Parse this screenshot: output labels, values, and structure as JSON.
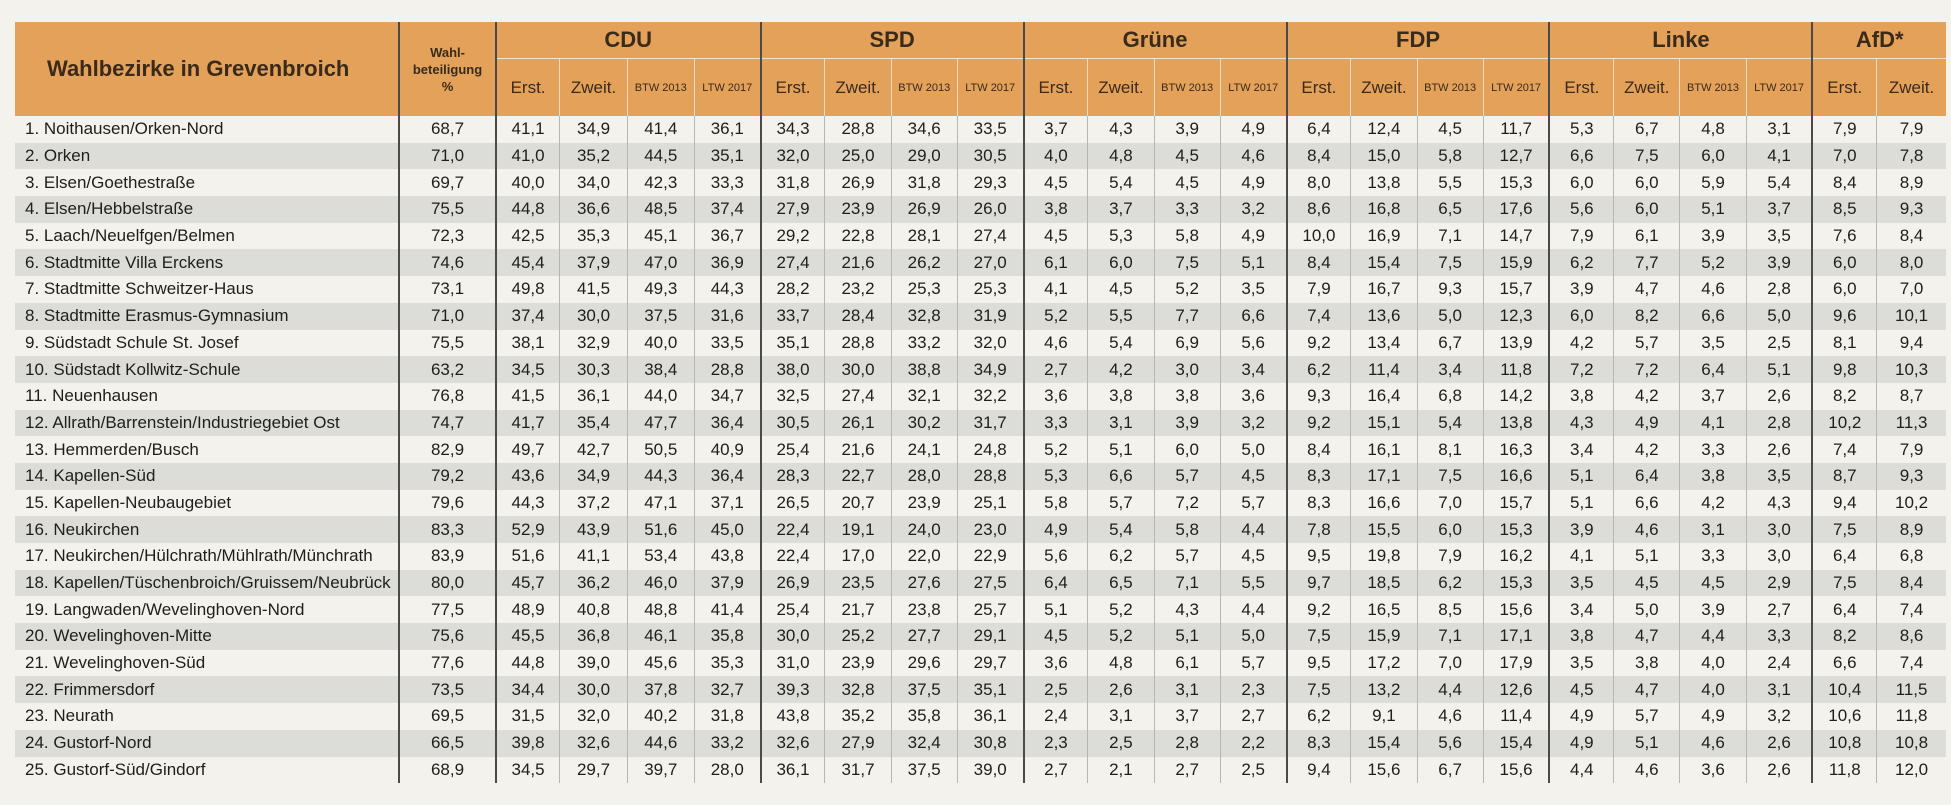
{
  "header": {
    "title": "Wahlbezirke in Grevenbroich",
    "turnout_label": "Wahl-\nbeteiligung\n%",
    "parties": [
      "CDU",
      "SPD",
      "Grüne",
      "FDP",
      "Linke",
      "AfD*"
    ],
    "sub4": [
      "Erst.",
      "Zweit.",
      "BTW 2013",
      "LTW 2017"
    ],
    "sub2": [
      "Erst.",
      "Zweit."
    ]
  },
  "rows": [
    {
      "name": "1. Noithausen/Orken-Nord",
      "turnout": "68,7",
      "v": [
        "41,1",
        "34,9",
        "41,4",
        "36,1",
        "34,3",
        "28,8",
        "34,6",
        "33,5",
        "3,7",
        "4,3",
        "3,9",
        "4,9",
        "6,4",
        "12,4",
        "4,5",
        "11,7",
        "5,3",
        "6,7",
        "4,8",
        "3,1",
        "7,9",
        "7,9"
      ]
    },
    {
      "name": "2. Orken",
      "turnout": "71,0",
      "v": [
        "41,0",
        "35,2",
        "44,5",
        "35,1",
        "32,0",
        "25,0",
        "29,0",
        "30,5",
        "4,0",
        "4,8",
        "4,5",
        "4,6",
        "8,4",
        "15,0",
        "5,8",
        "12,7",
        "6,6",
        "7,5",
        "6,0",
        "4,1",
        "7,0",
        "7,8"
      ]
    },
    {
      "name": "3. Elsen/Goethestraße",
      "turnout": "69,7",
      "v": [
        "40,0",
        "34,0",
        "42,3",
        "33,3",
        "31,8",
        "26,9",
        "31,8",
        "29,3",
        "4,5",
        "5,4",
        "4,5",
        "4,9",
        "8,0",
        "13,8",
        "5,5",
        "15,3",
        "6,0",
        "6,0",
        "5,9",
        "5,4",
        "8,4",
        "8,9"
      ]
    },
    {
      "name": "4. Elsen/Hebbelstraße",
      "turnout": "75,5",
      "v": [
        "44,8",
        "36,6",
        "48,5",
        "37,4",
        "27,9",
        "23,9",
        "26,9",
        "26,0",
        "3,8",
        "3,7",
        "3,3",
        "3,2",
        "8,6",
        "16,8",
        "6,5",
        "17,6",
        "5,6",
        "6,0",
        "5,1",
        "3,7",
        "8,5",
        "9,3"
      ]
    },
    {
      "name": "5. Laach/Neuelfgen/Belmen",
      "turnout": "72,3",
      "v": [
        "42,5",
        "35,3",
        "45,1",
        "36,7",
        "29,2",
        "22,8",
        "28,1",
        "27,4",
        "4,5",
        "5,3",
        "5,8",
        "4,9",
        "10,0",
        "16,9",
        "7,1",
        "14,7",
        "7,9",
        "6,1",
        "3,9",
        "3,5",
        "7,6",
        "8,4"
      ]
    },
    {
      "name": "6. Stadtmitte Villa Erckens",
      "turnout": "74,6",
      "v": [
        "45,4",
        "37,9",
        "47,0",
        "36,9",
        "27,4",
        "21,6",
        "26,2",
        "27,0",
        "6,1",
        "6,0",
        "7,5",
        "5,1",
        "8,4",
        "15,4",
        "7,5",
        "15,9",
        "6,2",
        "7,7",
        "5,2",
        "3,9",
        "6,0",
        "8,0"
      ]
    },
    {
      "name": "7. Stadtmitte Schweitzer-Haus",
      "turnout": "73,1",
      "v": [
        "49,8",
        "41,5",
        "49,3",
        "44,3",
        "28,2",
        "23,2",
        "25,3",
        "25,3",
        "4,1",
        "4,5",
        "5,2",
        "3,5",
        "7,9",
        "16,7",
        "9,3",
        "15,7",
        "3,9",
        "4,7",
        "4,6",
        "2,8",
        "6,0",
        "7,0"
      ]
    },
    {
      "name": "8. Stadtmitte Erasmus-Gymnasium",
      "turnout": "71,0",
      "v": [
        "37,4",
        "30,0",
        "37,5",
        "31,6",
        "33,7",
        "28,4",
        "32,8",
        "31,9",
        "5,2",
        "5,5",
        "7,7",
        "6,6",
        "7,4",
        "13,6",
        "5,0",
        "12,3",
        "6,0",
        "8,2",
        "6,6",
        "5,0",
        "9,6",
        "10,1"
      ]
    },
    {
      "name": "9. Südstadt Schule St. Josef",
      "turnout": "75,5",
      "v": [
        "38,1",
        "32,9",
        "40,0",
        "33,5",
        "35,1",
        "28,8",
        "33,2",
        "32,0",
        "4,6",
        "5,4",
        "6,9",
        "5,6",
        "9,2",
        "13,4",
        "6,7",
        "13,9",
        "4,2",
        "5,7",
        "3,5",
        "2,5",
        "8,1",
        "9,4"
      ]
    },
    {
      "name": "10. Südstadt Kollwitz-Schule",
      "turnout": "63,2",
      "v": [
        "34,5",
        "30,3",
        "38,4",
        "28,8",
        "38,0",
        "30,0",
        "38,8",
        "34,9",
        "2,7",
        "4,2",
        "3,0",
        "3,4",
        "6,2",
        "11,4",
        "3,4",
        "11,8",
        "7,2",
        "7,2",
        "6,4",
        "5,1",
        "9,8",
        "10,3"
      ]
    },
    {
      "name": "11. Neuenhausen",
      "turnout": "76,8",
      "v": [
        "41,5",
        "36,1",
        "44,0",
        "34,7",
        "32,5",
        "27,4",
        "32,1",
        "32,2",
        "3,6",
        "3,8",
        "3,8",
        "3,6",
        "9,3",
        "16,4",
        "6,8",
        "14,2",
        "3,8",
        "4,2",
        "3,7",
        "2,6",
        "8,2",
        "8,7"
      ]
    },
    {
      "name": "12. Allrath/Barrenstein/Industriegebiet Ost",
      "turnout": "74,7",
      "v": [
        "41,7",
        "35,4",
        "47,7",
        "36,4",
        "30,5",
        "26,1",
        "30,2",
        "31,7",
        "3,3",
        "3,1",
        "3,9",
        "3,2",
        "9,2",
        "15,1",
        "5,4",
        "13,8",
        "4,3",
        "4,9",
        "4,1",
        "2,8",
        "10,2",
        "11,3"
      ]
    },
    {
      "name": "13. Hemmerden/Busch",
      "turnout": "82,9",
      "v": [
        "49,7",
        "42,7",
        "50,5",
        "40,9",
        "25,4",
        "21,6",
        "24,1",
        "24,8",
        "5,2",
        "5,1",
        "6,0",
        "5,0",
        "8,4",
        "16,1",
        "8,1",
        "16,3",
        "3,4",
        "4,2",
        "3,3",
        "2,6",
        "7,4",
        "7,9"
      ]
    },
    {
      "name": "14. Kapellen-Süd",
      "turnout": "79,2",
      "v": [
        "43,6",
        "34,9",
        "44,3",
        "36,4",
        "28,3",
        "22,7",
        "28,0",
        "28,8",
        "5,3",
        "6,6",
        "5,7",
        "4,5",
        "8,3",
        "17,1",
        "7,5",
        "16,6",
        "5,1",
        "6,4",
        "3,8",
        "3,5",
        "8,7",
        "9,3"
      ]
    },
    {
      "name": "15. Kapellen-Neubaugebiet",
      "turnout": "79,6",
      "v": [
        "44,3",
        "37,2",
        "47,1",
        "37,1",
        "26,5",
        "20,7",
        "23,9",
        "25,1",
        "5,8",
        "5,7",
        "7,2",
        "5,7",
        "8,3",
        "16,6",
        "7,0",
        "15,7",
        "5,1",
        "6,6",
        "4,2",
        "4,3",
        "9,4",
        "10,2"
      ]
    },
    {
      "name": "16. Neukirchen",
      "turnout": "83,3",
      "v": [
        "52,9",
        "43,9",
        "51,6",
        "45,0",
        "22,4",
        "19,1",
        "24,0",
        "23,0",
        "4,9",
        "5,4",
        "5,8",
        "4,4",
        "7,8",
        "15,5",
        "6,0",
        "15,3",
        "3,9",
        "4,6",
        "3,1",
        "3,0",
        "7,5",
        "8,9"
      ]
    },
    {
      "name": "17. Neukirchen/Hülchrath/Mühlrath/Münchrath",
      "turnout": "83,9",
      "v": [
        "51,6",
        "41,1",
        "53,4",
        "43,8",
        "22,4",
        "17,0",
        "22,0",
        "22,9",
        "5,6",
        "6,2",
        "5,7",
        "4,5",
        "9,5",
        "19,8",
        "7,9",
        "16,2",
        "4,1",
        "5,1",
        "3,3",
        "3,0",
        "6,4",
        "6,8"
      ]
    },
    {
      "name": "18. Kapellen/Tüschenbroich/Gruissem/Neubrück",
      "turnout": "80,0",
      "v": [
        "45,7",
        "36,2",
        "46,0",
        "37,9",
        "26,9",
        "23,5",
        "27,6",
        "27,5",
        "6,4",
        "6,5",
        "7,1",
        "5,5",
        "9,7",
        "18,5",
        "6,2",
        "15,3",
        "3,5",
        "4,5",
        "4,5",
        "2,9",
        "7,5",
        "8,4"
      ]
    },
    {
      "name": "19. Langwaden/Wevelinghoven-Nord",
      "turnout": "77,5",
      "v": [
        "48,9",
        "40,8",
        "48,8",
        "41,4",
        "25,4",
        "21,7",
        "23,8",
        "25,7",
        "5,1",
        "5,2",
        "4,3",
        "4,4",
        "9,2",
        "16,5",
        "8,5",
        "15,6",
        "3,4",
        "5,0",
        "3,9",
        "2,7",
        "6,4",
        "7,4"
      ]
    },
    {
      "name": "20. Wevelinghoven-Mitte",
      "turnout": "75,6",
      "v": [
        "45,5",
        "36,8",
        "46,1",
        "35,8",
        "30,0",
        "25,2",
        "27,7",
        "29,1",
        "4,5",
        "5,2",
        "5,1",
        "5,0",
        "7,5",
        "15,9",
        "7,1",
        "17,1",
        "3,8",
        "4,7",
        "4,4",
        "3,3",
        "8,2",
        "8,6"
      ]
    },
    {
      "name": "21. Wevelinghoven-Süd",
      "turnout": "77,6",
      "v": [
        "44,8",
        "39,0",
        "45,6",
        "35,3",
        "31,0",
        "23,9",
        "29,6",
        "29,7",
        "3,6",
        "4,8",
        "6,1",
        "5,7",
        "9,5",
        "17,2",
        "7,0",
        "17,9",
        "3,5",
        "3,8",
        "4,0",
        "2,4",
        "6,6",
        "7,4"
      ]
    },
    {
      "name": "22. Frimmersdorf",
      "turnout": "73,5",
      "v": [
        "34,4",
        "30,0",
        "37,8",
        "32,7",
        "39,3",
        "32,8",
        "37,5",
        "35,1",
        "2,5",
        "2,6",
        "3,1",
        "2,3",
        "7,5",
        "13,2",
        "4,4",
        "12,6",
        "4,5",
        "4,7",
        "4,0",
        "3,1",
        "10,4",
        "11,5"
      ]
    },
    {
      "name": "23. Neurath",
      "turnout": "69,5",
      "v": [
        "31,5",
        "32,0",
        "40,2",
        "31,8",
        "43,8",
        "35,2",
        "35,8",
        "36,1",
        "2,4",
        "3,1",
        "3,7",
        "2,7",
        "6,2",
        "9,1",
        "4,6",
        "11,4",
        "4,9",
        "5,7",
        "4,9",
        "3,2",
        "10,6",
        "11,8"
      ]
    },
    {
      "name": "24. Gustorf-Nord",
      "turnout": "66,5",
      "v": [
        "39,8",
        "32,6",
        "44,6",
        "33,2",
        "32,6",
        "27,9",
        "32,4",
        "30,8",
        "2,3",
        "2,5",
        "2,8",
        "2,2",
        "8,3",
        "15,4",
        "5,6",
        "15,4",
        "4,9",
        "5,1",
        "4,6",
        "2,6",
        "10,8",
        "10,8"
      ]
    },
    {
      "name": "25. Gustorf-Süd/Gindorf",
      "turnout": "68,9",
      "v": [
        "34,5",
        "29,7",
        "39,7",
        "28,0",
        "36,1",
        "31,7",
        "37,5",
        "39,0",
        "2,7",
        "2,1",
        "2,7",
        "2,5",
        "9,4",
        "15,6",
        "6,7",
        "15,6",
        "4,4",
        "4,6",
        "3,6",
        "2,6",
        "11,8",
        "12,0"
      ]
    }
  ]
}
